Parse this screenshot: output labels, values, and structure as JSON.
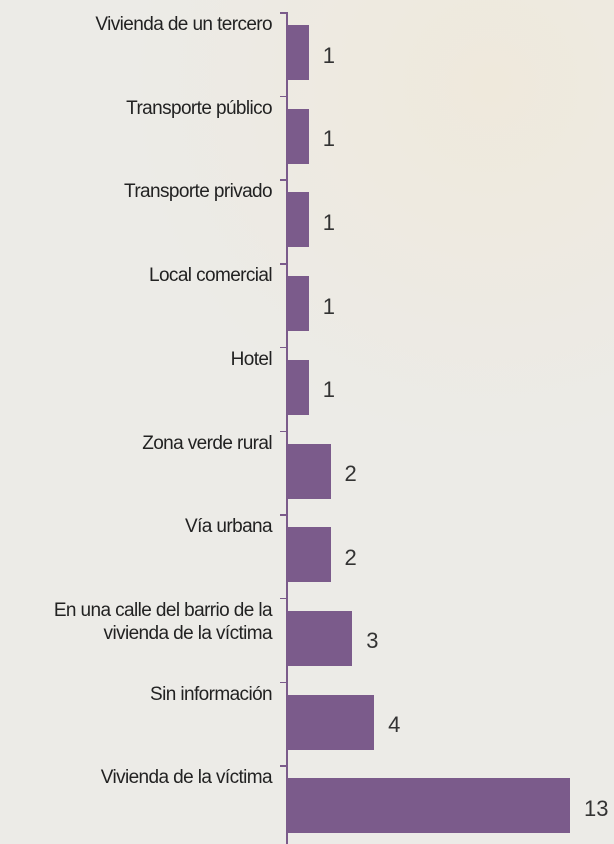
{
  "chart_data": {
    "type": "bar",
    "orientation": "horizontal",
    "color": "#7b5b8b",
    "categories": [
      "Vivienda de un tercero",
      "Transporte público",
      "Transporte privado",
      "Local comercial",
      "Hotel",
      "Zona verde rural",
      "Vía urbana",
      "En una calle del barrio de la vivienda de la víctima",
      "Sin información",
      "Vivienda de la víctima"
    ],
    "values": [
      1,
      1,
      1,
      1,
      1,
      2,
      2,
      3,
      4,
      13
    ]
  }
}
